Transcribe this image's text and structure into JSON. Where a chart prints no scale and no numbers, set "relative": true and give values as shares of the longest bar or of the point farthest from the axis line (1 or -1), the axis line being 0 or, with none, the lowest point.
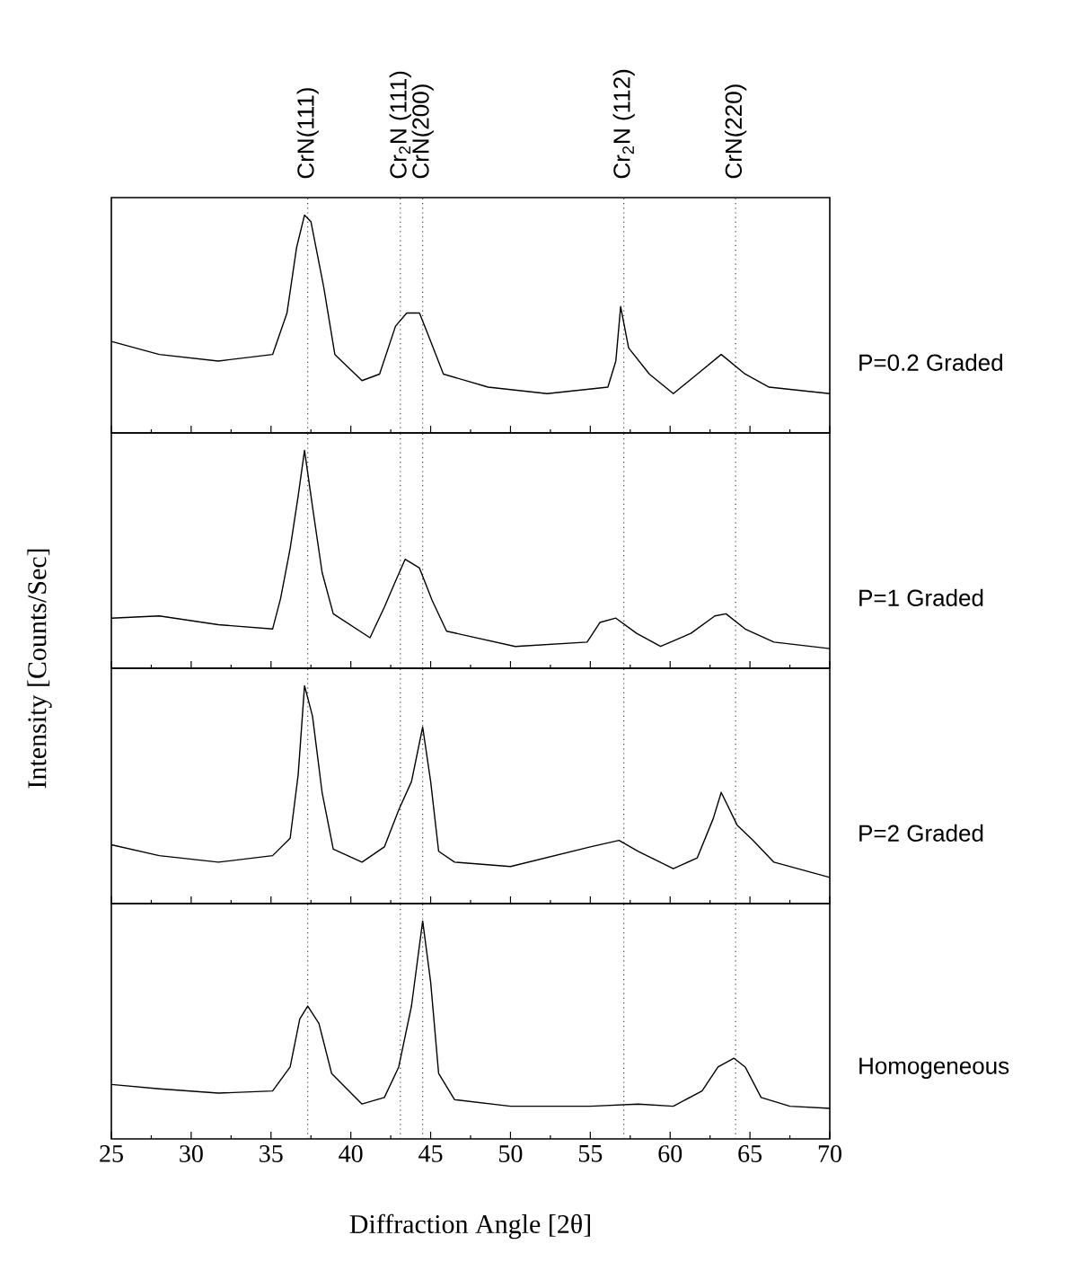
{
  "chart_data": [
    {
      "type": "line",
      "relative": true,
      "xlim": [
        25,
        70
      ],
      "xticks": [
        25,
        30,
        35,
        40,
        45,
        50,
        55,
        60,
        65,
        70
      ],
      "tick_labels": false,
      "ref_lines": [
        {
          "axis": "x",
          "value": 37.3,
          "label": "CrN(111)",
          "color": "#404040",
          "line_style": "dotted"
        },
        {
          "axis": "x",
          "value": 43.1,
          "label": "Cr$_{2}$N (111)",
          "color": "#404040",
          "line_style": "dotted"
        },
        {
          "axis": "x",
          "value": 44.5,
          "label": "CrN(200)",
          "color": "#404040",
          "line_style": "dotted"
        },
        {
          "axis": "x",
          "value": 57.1,
          "label": "Cr$_{2}$N (112)",
          "color": "#404040",
          "line_style": "dotted"
        },
        {
          "axis": "x",
          "value": 64.1,
          "label": "CrN(220)",
          "color": "#404040",
          "line_style": "dotted"
        }
      ],
      "series": [
        {
          "name": "P=0.2 Graded",
          "color": "#000000",
          "x": [
            25,
            28,
            31.7,
            35.1,
            36,
            36.6,
            37.1,
            37.5,
            38.3,
            39,
            40.7,
            41.8,
            42.8,
            43.5,
            44.3,
            45,
            45.8,
            48.6,
            52.3,
            56.1,
            56.6,
            56.9,
            57.4,
            58.7,
            60.2,
            61.7,
            63.2,
            64.7,
            66.2,
            70
          ],
          "values": [
            0.42,
            0.36,
            0.33,
            0.36,
            0.55,
            0.85,
            1,
            0.97,
            0.67,
            0.36,
            0.24,
            0.27,
            0.49,
            0.55,
            0.55,
            0.42,
            0.27,
            0.21,
            0.18,
            0.21,
            0.33,
            0.58,
            0.39,
            0.27,
            0.18,
            0.27,
            0.36,
            0.27,
            0.21,
            0.18
          ]
        }
      ]
    },
    {
      "type": "line",
      "relative": true,
      "xlim": [
        25,
        70
      ],
      "xticks": [
        25,
        30,
        35,
        40,
        45,
        50,
        55,
        60,
        65,
        70
      ],
      "tick_labels": false,
      "ylabel": "Intensity [Counts/Sec]",
      "ref_lines": [
        {
          "axis": "x",
          "value": 37.3,
          "color": "#404040",
          "line_style": "dotted"
        },
        {
          "axis": "x",
          "value": 43.1,
          "color": "#404040",
          "line_style": "dotted"
        },
        {
          "axis": "x",
          "value": 44.5,
          "color": "#404040",
          "line_style": "dotted"
        },
        {
          "axis": "x",
          "value": 57.1,
          "color": "#404040",
          "line_style": "dotted"
        },
        {
          "axis": "x",
          "value": 64.1,
          "color": "#404040",
          "line_style": "dotted"
        }
      ],
      "series": [
        {
          "name": "P=1 Graded",
          "color": "#000000",
          "x": [
            25,
            28,
            31.7,
            35.1,
            35.6,
            36.2,
            36.7,
            37.1,
            37.6,
            38.2,
            38.9,
            41.2,
            42.1,
            42.8,
            43.4,
            44.3,
            45.1,
            46,
            50.3,
            54.8,
            55.6,
            56.6,
            57.9,
            59.4,
            61.3,
            62.8,
            63.5,
            64.7,
            66.5,
            70
          ],
          "values": [
            0.23,
            0.24,
            0.2,
            0.18,
            0.32,
            0.55,
            0.79,
            1,
            0.74,
            0.44,
            0.25,
            0.14,
            0.28,
            0.4,
            0.5,
            0.46,
            0.31,
            0.17,
            0.1,
            0.12,
            0.21,
            0.23,
            0.16,
            0.1,
            0.16,
            0.24,
            0.25,
            0.18,
            0.12,
            0.09
          ]
        }
      ]
    },
    {
      "type": "line",
      "relative": true,
      "xlim": [
        25,
        70
      ],
      "xticks": [
        25,
        30,
        35,
        40,
        45,
        50,
        55,
        60,
        65,
        70
      ],
      "tick_labels": false,
      "ref_lines": [
        {
          "axis": "x",
          "value": 37.3,
          "color": "#404040",
          "line_style": "dotted"
        },
        {
          "axis": "x",
          "value": 43.1,
          "color": "#404040",
          "line_style": "dotted"
        },
        {
          "axis": "x",
          "value": 44.5,
          "color": "#404040",
          "line_style": "dotted"
        },
        {
          "axis": "x",
          "value": 57.1,
          "color": "#404040",
          "line_style": "dotted"
        },
        {
          "axis": "x",
          "value": 64.1,
          "color": "#404040",
          "line_style": "dotted"
        }
      ],
      "series": [
        {
          "name": "P=2 Graded",
          "color": "#000000",
          "x": [
            25,
            28,
            31.7,
            35.1,
            36.2,
            36.7,
            37.1,
            37.6,
            38.2,
            38.9,
            40.7,
            42.1,
            43,
            43.8,
            44.5,
            45,
            45.5,
            46.5,
            50,
            55,
            56.8,
            58,
            60.2,
            61.7,
            62.7,
            63.2,
            64.2,
            65.2,
            66.5,
            70
          ],
          "values": [
            0.27,
            0.22,
            0.19,
            0.22,
            0.3,
            0.59,
            1,
            0.86,
            0.51,
            0.25,
            0.19,
            0.26,
            0.43,
            0.56,
            0.81,
            0.56,
            0.24,
            0.19,
            0.17,
            0.26,
            0.29,
            0.24,
            0.16,
            0.21,
            0.39,
            0.51,
            0.36,
            0.29,
            0.19,
            0.12
          ]
        }
      ]
    },
    {
      "type": "line",
      "relative": true,
      "xlim": [
        25,
        70
      ],
      "xticks": [
        25,
        30,
        35,
        40,
        45,
        50,
        55,
        60,
        65,
        70
      ],
      "tick_labels": "x",
      "xlabel": "Diffraction Angle [2θ]",
      "ref_lines": [
        {
          "axis": "x",
          "value": 37.3,
          "color": "#404040",
          "line_style": "dotted"
        },
        {
          "axis": "x",
          "value": 43.1,
          "color": "#404040",
          "line_style": "dotted"
        },
        {
          "axis": "x",
          "value": 44.5,
          "color": "#404040",
          "line_style": "dotted"
        },
        {
          "axis": "x",
          "value": 57.1,
          "color": "#404040",
          "line_style": "dotted"
        },
        {
          "axis": "x",
          "value": 64.1,
          "color": "#404040",
          "line_style": "dotted"
        }
      ],
      "series": [
        {
          "name": "Homogeneous",
          "color": "#000000",
          "x": [
            25,
            28,
            31.7,
            35.1,
            36.2,
            36.8,
            37.3,
            38,
            38.8,
            40.7,
            42.1,
            43,
            43.8,
            44.5,
            45,
            45.5,
            46.5,
            50,
            55,
            58,
            60.2,
            62,
            63,
            64,
            64.7,
            65.7,
            67.5,
            70
          ],
          "values": [
            0.25,
            0.23,
            0.21,
            0.22,
            0.33,
            0.55,
            0.61,
            0.53,
            0.3,
            0.16,
            0.19,
            0.33,
            0.61,
            1,
            0.72,
            0.3,
            0.18,
            0.15,
            0.15,
            0.16,
            0.15,
            0.22,
            0.33,
            0.37,
            0.33,
            0.19,
            0.15,
            0.14
          ]
        }
      ]
    }
  ]
}
